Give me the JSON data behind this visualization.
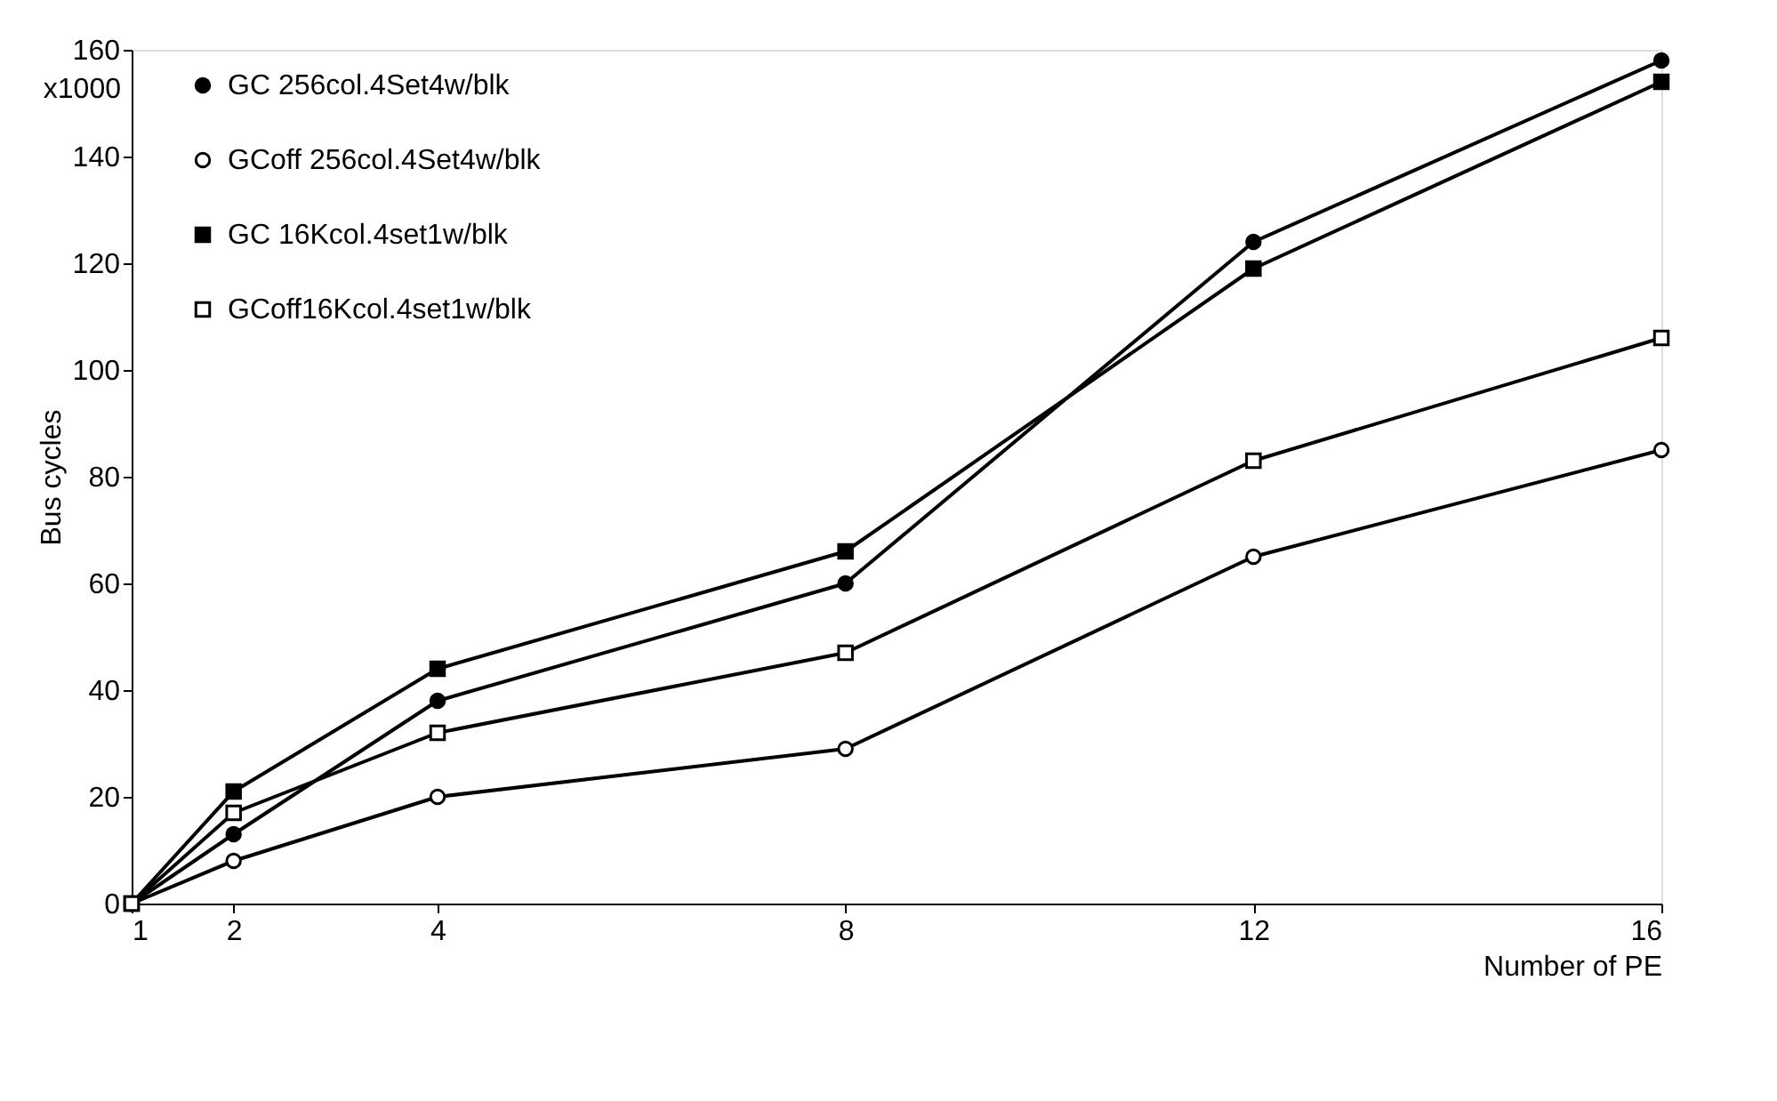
{
  "chart_data": {
    "type": "line",
    "xlabel": "Number of PE",
    "ylabel": "Bus cycles",
    "annotations": [
      "x1000"
    ],
    "x": [
      1,
      2,
      4,
      8,
      12,
      16
    ],
    "xlim": [
      1,
      16
    ],
    "xticks": [
      1,
      2,
      4,
      8,
      12,
      16
    ],
    "ylim": [
      0,
      160
    ],
    "yticks": [
      0,
      20,
      40,
      60,
      80,
      100,
      120,
      140,
      160
    ],
    "grid": false,
    "legend": "top left",
    "line_style": "solid",
    "series": [
      {
        "name": "GC 256col.4Set4w/blk",
        "color": "#000000",
        "marker": "circle",
        "colors": [
          "#000000",
          "#000000",
          "#000000",
          "#000000",
          "#000000",
          "#000000"
        ],
        "values": [
          0,
          13,
          38,
          60,
          124,
          158
        ]
      },
      {
        "name": "GCoff  256col.4Set4w/blk",
        "color": "#000000",
        "marker": "circle",
        "colors": [
          "#ffffff",
          "#ffffff",
          "#ffffff",
          "#ffffff",
          "#ffffff",
          "#ffffff"
        ],
        "values": [
          0,
          8,
          20,
          29,
          65,
          85
        ]
      },
      {
        "name": "GC 16Kcol.4set1w/blk",
        "color": "#000000",
        "marker": "square",
        "colors": [
          "#000000",
          "#000000",
          "#000000",
          "#000000",
          "#000000",
          "#000000"
        ],
        "values": [
          0,
          21,
          44,
          66,
          119,
          154
        ]
      },
      {
        "name": "GCoff16Kcol.4set1w/blk",
        "color": "#000000",
        "marker": "square",
        "colors": [
          "#ffffff",
          "#ffffff",
          "#ffffff",
          "#ffffff",
          "#ffffff",
          "#ffffff"
        ],
        "values": [
          0,
          17,
          32,
          47,
          83,
          106
        ]
      }
    ]
  }
}
